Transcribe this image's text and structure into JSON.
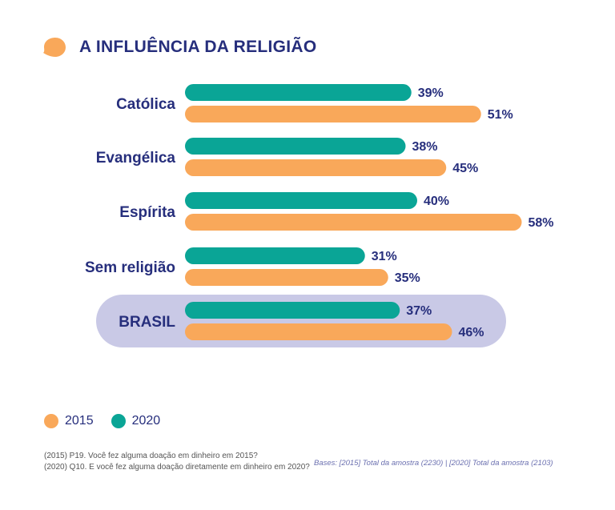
{
  "title": "A INFLUÊNCIA DA RELIGIÃO",
  "colors": {
    "s2015": "#f9a85a",
    "s2020": "#0aa596",
    "text": "#262e7c",
    "highlight": "#c9c9e6"
  },
  "chart_data": {
    "type": "bar",
    "orientation": "horizontal",
    "categories": [
      "Católica",
      "Evangélica",
      "Espírita",
      "Sem religião",
      "BRASIL"
    ],
    "highlight_category": "BRASIL",
    "series": [
      {
        "name": "2020",
        "values": [
          39,
          38,
          40,
          31,
          37
        ],
        "labels": [
          "39%",
          "38%",
          "40%",
          "31%",
          "37%"
        ]
      },
      {
        "name": "2015",
        "values": [
          51,
          45,
          58,
          35,
          46
        ],
        "labels": [
          "51%",
          "45%",
          "58%",
          "35%",
          "46%"
        ]
      }
    ],
    "unit": "%",
    "xlim": [
      0,
      58
    ]
  },
  "legend": [
    "2015",
    "2020"
  ],
  "footnote": [
    "(2015) P19. Você fez alguma doação em dinheiro em 2015?",
    "(2020) Q10. E você fez alguma doação diretamente em dinheiro em 2020?"
  ],
  "bases": "Bases: [2015] Total da amostra (2230) | [2020] Total da amostra (2103)"
}
